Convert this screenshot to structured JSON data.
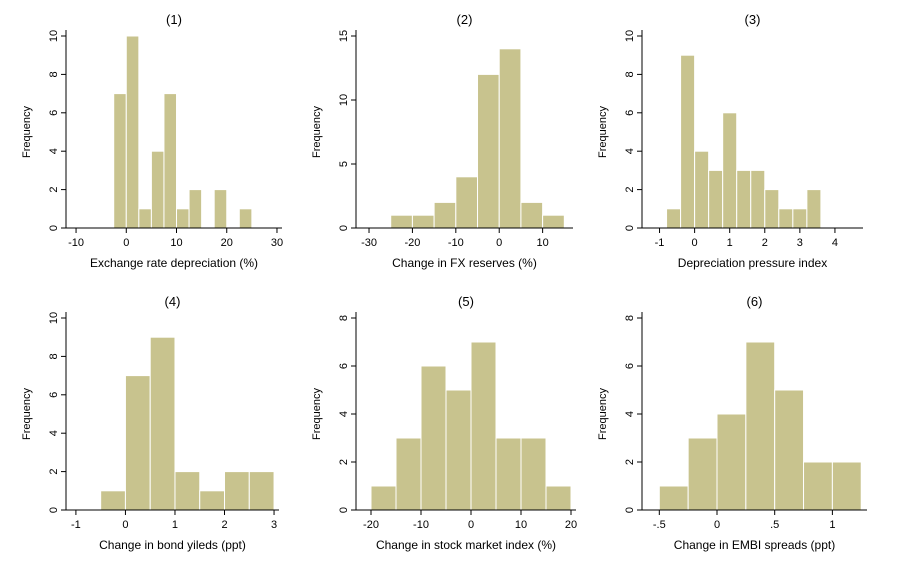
{
  "style": {
    "bar_color": "#c8c38e",
    "bar_edge": "#ffffff",
    "axis_color": "#000000"
  },
  "chart_data": [
    {
      "type": "bar",
      "title": "(1)",
      "xlabel": "Exchange rate depreciation (%)",
      "ylabel": "Frequency",
      "xlim": [
        -12,
        31
      ],
      "ylim": [
        0,
        10
      ],
      "xticks": [
        -10,
        0,
        10,
        20,
        30
      ],
      "yticks": [
        0,
        2,
        4,
        6,
        8,
        10
      ],
      "bin_width": 2.5,
      "bins": [
        {
          "x0": -2.5,
          "count": 7
        },
        {
          "x0": 0,
          "count": 10
        },
        {
          "x0": 2.5,
          "count": 1
        },
        {
          "x0": 5,
          "count": 4
        },
        {
          "x0": 7.5,
          "count": 7
        },
        {
          "x0": 10,
          "count": 1
        },
        {
          "x0": 12.5,
          "count": 2
        },
        {
          "x0": 17.5,
          "count": 2
        },
        {
          "x0": 22.5,
          "count": 1
        }
      ]
    },
    {
      "type": "bar",
      "title": "(2)",
      "xlabel": "Change in FX reserves (%)",
      "ylabel": "Frequency",
      "xlim": [
        -33,
        17
      ],
      "ylim": [
        0,
        15
      ],
      "xticks": [
        -30,
        -20,
        -10,
        0,
        10
      ],
      "yticks": [
        0,
        5,
        10,
        15
      ],
      "bin_width": 5,
      "bins": [
        {
          "x0": -25,
          "count": 1
        },
        {
          "x0": -20,
          "count": 1
        },
        {
          "x0": -15,
          "count": 2
        },
        {
          "x0": -10,
          "count": 4
        },
        {
          "x0": -5,
          "count": 12
        },
        {
          "x0": 0,
          "count": 14
        },
        {
          "x0": 5,
          "count": 2
        },
        {
          "x0": 10,
          "count": 1
        }
      ]
    },
    {
      "type": "bar",
      "title": "(3)",
      "xlabel": "Depreciation pressure index",
      "ylabel": "Frequency",
      "xlim": [
        -1.5,
        4.8
      ],
      "ylim": [
        0,
        10
      ],
      "xticks": [
        -1,
        0,
        1,
        2,
        3,
        4
      ],
      "yticks": [
        0,
        2,
        4,
        6,
        8,
        10
      ],
      "bin_width": 0.4,
      "bins": [
        {
          "x0": -0.8,
          "count": 1
        },
        {
          "x0": -0.4,
          "count": 9
        },
        {
          "x0": 0,
          "count": 4
        },
        {
          "x0": 0.4,
          "count": 3
        },
        {
          "x0": 0.8,
          "count": 6
        },
        {
          "x0": 1.2,
          "count": 3
        },
        {
          "x0": 1.6,
          "count": 3
        },
        {
          "x0": 2.0,
          "count": 2
        },
        {
          "x0": 2.4,
          "count": 1
        },
        {
          "x0": 2.8,
          "count": 1
        },
        {
          "x0": 3.2,
          "count": 2
        }
      ]
    },
    {
      "type": "bar",
      "title": "(4)",
      "xlabel": "Change in bond yileds (ppt)",
      "ylabel": "Frequency",
      "xlim": [
        -1.2,
        3.1
      ],
      "ylim": [
        0,
        10
      ],
      "xticks": [
        -1,
        0,
        1,
        2,
        3
      ],
      "yticks": [
        0,
        2,
        4,
        6,
        8,
        10
      ],
      "bin_width": 0.5,
      "bins": [
        {
          "x0": -0.5,
          "count": 1
        },
        {
          "x0": 0,
          "count": 7
        },
        {
          "x0": 0.5,
          "count": 9
        },
        {
          "x0": 1.0,
          "count": 2
        },
        {
          "x0": 1.5,
          "count": 1
        },
        {
          "x0": 2.0,
          "count": 2
        },
        {
          "x0": 2.5,
          "count": 2
        }
      ]
    },
    {
      "type": "bar",
      "title": "(5)",
      "xlabel": "Change in stock market index (%)",
      "ylabel": "Frequency",
      "xlim": [
        -23,
        21
      ],
      "ylim": [
        0,
        8
      ],
      "xticks": [
        -20,
        -10,
        0,
        10,
        20
      ],
      "yticks": [
        0,
        2,
        4,
        6,
        8
      ],
      "bin_width": 5,
      "bins": [
        {
          "x0": -20,
          "count": 1
        },
        {
          "x0": -15,
          "count": 3
        },
        {
          "x0": -10,
          "count": 6
        },
        {
          "x0": -5,
          "count": 5
        },
        {
          "x0": 0,
          "count": 7
        },
        {
          "x0": 5,
          "count": 3
        },
        {
          "x0": 10,
          "count": 3
        },
        {
          "x0": 15,
          "count": 1
        }
      ]
    },
    {
      "type": "bar",
      "title": "(6)",
      "xlabel": "Change in EMBI spreads (ppt)",
      "ylabel": "Frequency",
      "xlim": [
        -0.65,
        1.3
      ],
      "ylim": [
        0,
        8
      ],
      "xticks": [
        -0.5,
        0,
        0.5,
        1
      ],
      "xtick_labels": [
        "-.5",
        "0",
        ".5",
        "1"
      ],
      "yticks": [
        0,
        2,
        4,
        6,
        8
      ],
      "bin_width": 0.25,
      "bins": [
        {
          "x0": -0.5,
          "count": 1
        },
        {
          "x0": -0.25,
          "count": 3
        },
        {
          "x0": 0,
          "count": 4
        },
        {
          "x0": 0.25,
          "count": 7
        },
        {
          "x0": 0.5,
          "count": 5
        },
        {
          "x0": 0.75,
          "count": 2
        },
        {
          "x0": 1.0,
          "count": 2
        }
      ]
    }
  ]
}
